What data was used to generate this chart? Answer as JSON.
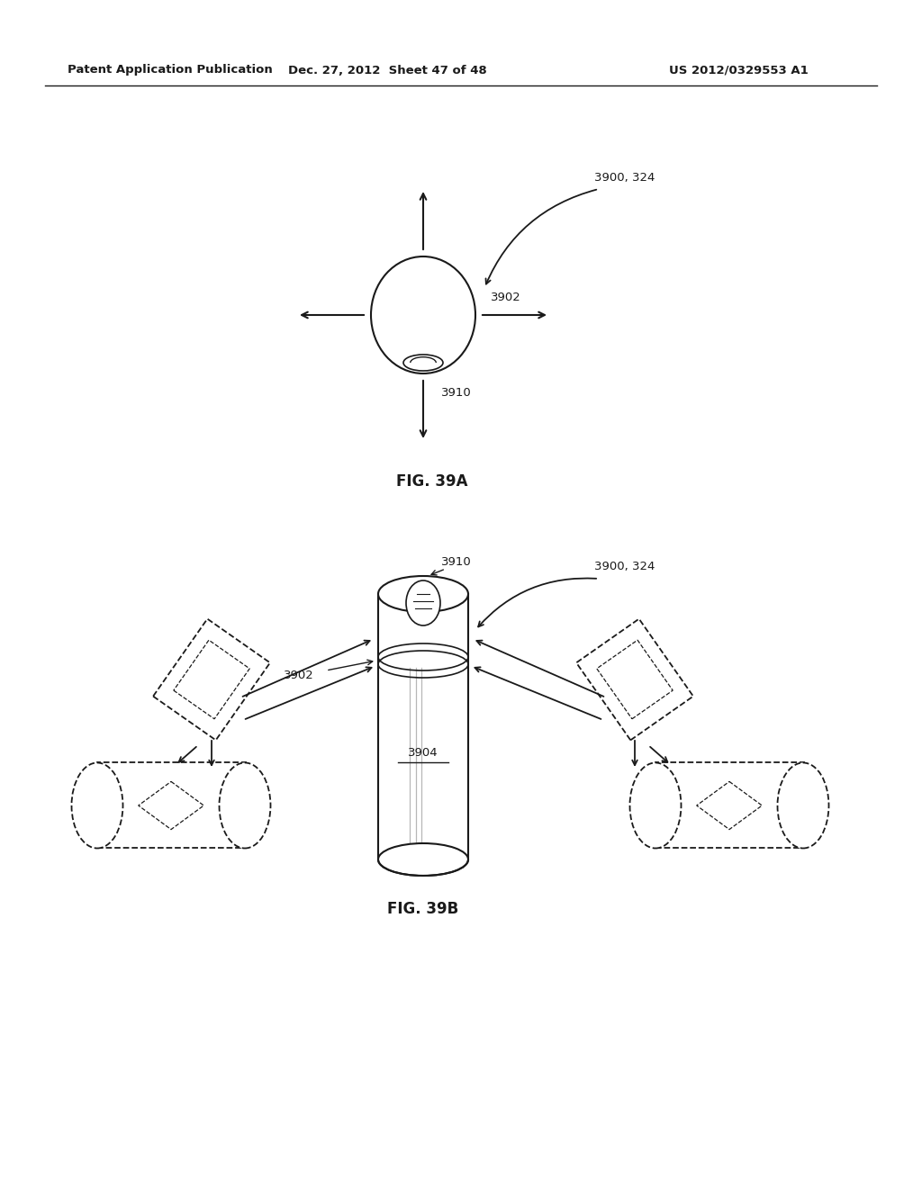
{
  "header_left": "Patent Application Publication",
  "header_mid": "Dec. 27, 2012  Sheet 47 of 48",
  "header_right": "US 2012/0329553 A1",
  "fig_a_label": "FIG. 39A",
  "fig_b_label": "FIG. 39B",
  "label_3900_324_a": "3900, 324",
  "label_3900_324_b": "3900, 324",
  "label_3902_a": "3902",
  "label_3902_b": "3902",
  "label_3910_a": "3910",
  "label_3910_b": "3910",
  "label_3904": "3904",
  "bg_color": "#ffffff",
  "line_color": "#1a1a1a"
}
